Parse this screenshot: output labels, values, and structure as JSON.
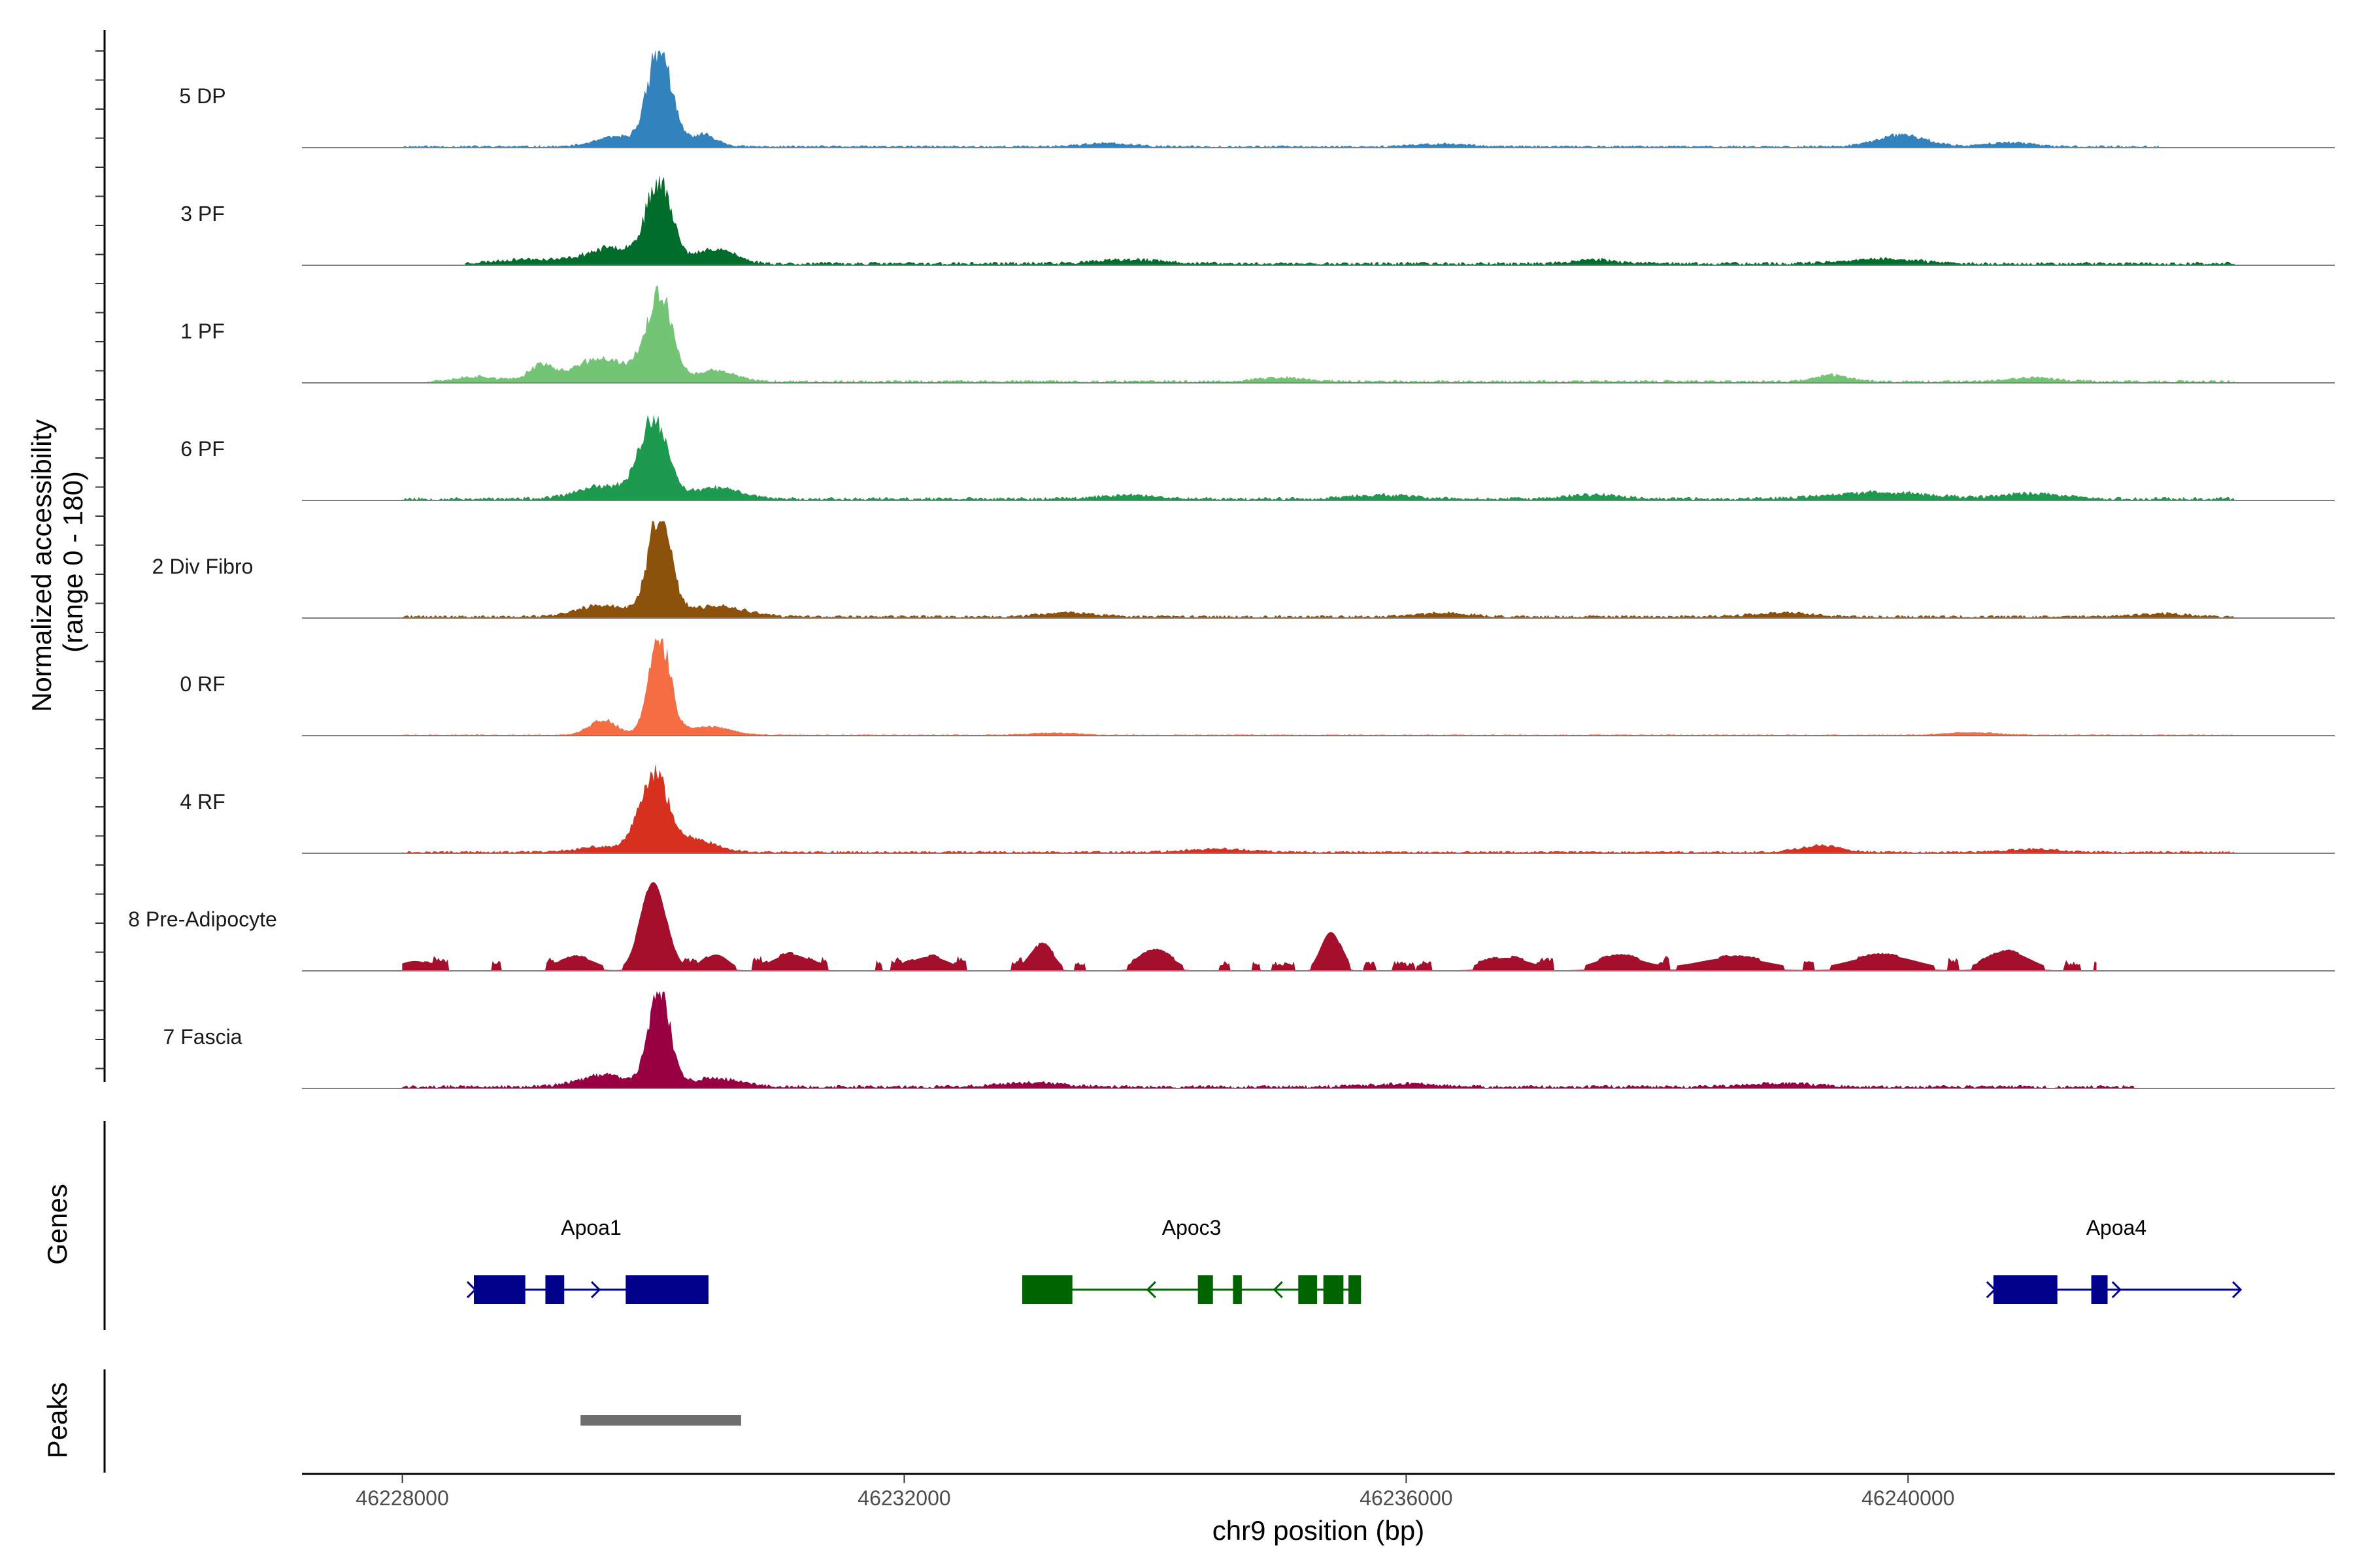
{
  "chart_data": {
    "type": "area",
    "y_axis_title_lines": [
      "Normalized accessibility",
      "(range 0 - 180)"
    ],
    "x_axis_title": "chr9 position (bp)",
    "xlim": [
      46227200,
      46243400
    ],
    "ylim": [
      0,
      180
    ],
    "x_ticks": [
      46228000,
      46232000,
      46236000,
      46240000
    ],
    "x_tick_labels": [
      "46228000",
      "46232000",
      "46236000",
      "46240000"
    ],
    "tracks": [
      {
        "name": "5 DP",
        "color": "#3182bd",
        "signal_start": 46228000,
        "signal_end": 46242000,
        "peaks": [
          [
            46230050,
            180,
            95
          ],
          [
            46229700,
            18,
            160
          ],
          [
            46230400,
            22,
            110
          ],
          [
            46239950,
            22,
            190
          ],
          [
            46240800,
            8,
            170
          ],
          [
            46233600,
            6,
            200
          ],
          [
            46236300,
            5,
            220
          ]
        ],
        "noise": 4,
        "seed": 11
      },
      {
        "name": "3 PF",
        "color": "#006d2c",
        "signal_start": 46228500,
        "signal_end": 46242600,
        "peaks": [
          [
            46230050,
            145,
            100
          ],
          [
            46229700,
            30,
            220
          ],
          [
            46230500,
            28,
            150
          ],
          [
            46229000,
            8,
            250
          ],
          [
            46237500,
            8,
            160
          ],
          [
            46239800,
            9,
            260
          ],
          [
            46233800,
            7,
            260
          ]
        ],
        "noise": 6,
        "seed": 23
      },
      {
        "name": "1 PF",
        "color": "#74c476",
        "signal_start": 46228200,
        "signal_end": 46242600,
        "peaks": [
          [
            46230050,
            155,
            100
          ],
          [
            46229600,
            42,
            240
          ],
          [
            46229100,
            28,
            90
          ],
          [
            46230500,
            20,
            150
          ],
          [
            46228600,
            9,
            180
          ],
          [
            46239400,
            12,
            140
          ],
          [
            46235000,
            7,
            200
          ],
          [
            46241000,
            7,
            200
          ]
        ],
        "noise": 5,
        "seed": 37
      },
      {
        "name": "6 PF",
        "color": "#1d9a4e",
        "signal_start": 46228000,
        "signal_end": 46242600,
        "peaks": [
          [
            46230000,
            145,
            110
          ],
          [
            46229600,
            24,
            200
          ],
          [
            46230500,
            20,
            200
          ],
          [
            46233800,
            7,
            240
          ],
          [
            46235800,
            7,
            240
          ],
          [
            46237500,
            8,
            200
          ],
          [
            46239800,
            12,
            400
          ],
          [
            46241000,
            10,
            240
          ]
        ],
        "noise": 6,
        "seed": 53
      },
      {
        "name": "2 Div Fibro",
        "color": "#8c510a",
        "signal_start": 46228000,
        "signal_end": 46242600,
        "peaks": [
          [
            46230050,
            190,
            90
          ],
          [
            46229600,
            22,
            200
          ],
          [
            46230500,
            20,
            220
          ],
          [
            46233300,
            8,
            200
          ],
          [
            46236300,
            7,
            220
          ],
          [
            46239000,
            7,
            240
          ],
          [
            46242000,
            6,
            200
          ]
        ],
        "noise": 5,
        "seed": 71
      },
      {
        "name": "0 RF",
        "color": "#f46d43",
        "signal_start": 46228000,
        "signal_end": 46242600,
        "peaks": [
          [
            46230050,
            180,
            85
          ],
          [
            46229600,
            28,
            110
          ],
          [
            46230450,
            16,
            170
          ],
          [
            46233200,
            4,
            200
          ],
          [
            46240500,
            5,
            200
          ]
        ],
        "noise": 2,
        "seed": 89
      },
      {
        "name": "4 RF",
        "color": "#d7301f",
        "signal_start": 46228000,
        "signal_end": 46242600,
        "peaks": [
          [
            46230000,
            140,
            110
          ],
          [
            46230300,
            24,
            180
          ],
          [
            46229600,
            10,
            200
          ],
          [
            46239300,
            12,
            170
          ],
          [
            46234500,
            6,
            250
          ],
          [
            46241000,
            6,
            200
          ]
        ],
        "noise": 4,
        "seed": 97
      },
      {
        "name": "8 Pre-Adipocyte",
        "color": "#a50f2b",
        "signal_start": 46228000,
        "signal_end": 46241500,
        "peaks": [
          [
            46230000,
            165,
            100
          ],
          [
            46235400,
            72,
            80
          ],
          [
            46234000,
            36,
            140
          ],
          [
            46233100,
            48,
            90
          ],
          [
            46231100,
            30,
            160
          ],
          [
            46229400,
            24,
            150
          ],
          [
            46228100,
            18,
            130
          ],
          [
            46232200,
            26,
            160
          ],
          [
            46236800,
            24,
            200
          ],
          [
            46237700,
            26,
            200
          ],
          [
            46238600,
            24,
            300
          ],
          [
            46239800,
            28,
            280
          ],
          [
            46240800,
            34,
            180
          ],
          [
            46230500,
            30,
            100
          ]
        ],
        "noise": 18,
        "seed": 113,
        "gapped": true
      },
      {
        "name": "7 Fascia",
        "color": "#980043",
        "signal_start": 46228000,
        "signal_end": 46241800,
        "peaks": [
          [
            46230050,
            175,
            85
          ],
          [
            46229600,
            22,
            200
          ],
          [
            46230500,
            16,
            200
          ],
          [
            46233000,
            8,
            260
          ],
          [
            46236000,
            6,
            260
          ],
          [
            46239000,
            7,
            260
          ]
        ],
        "noise": 6,
        "seed": 131
      }
    ],
    "genes_title": "Genes",
    "genes": [
      {
        "name": "Apoa1",
        "color": "#00008b",
        "start": 46228570,
        "end": 46230440,
        "strand": "+",
        "exons": [
          [
            46228570,
            46228980
          ],
          [
            46229140,
            46229290
          ],
          [
            46229780,
            46230440
          ]
        ],
        "arrows": [
          46228570,
          46229560
        ]
      },
      {
        "name": "Apoc3",
        "color": "#006400",
        "start": 46232940,
        "end": 46235640,
        "strand": "-",
        "exons": [
          [
            46232940,
            46233340
          ],
          [
            46234340,
            46234460
          ],
          [
            46234620,
            46234690
          ],
          [
            46235140,
            46235290
          ],
          [
            46235340,
            46235500
          ],
          [
            46235540,
            46235640
          ]
        ],
        "arrows": [
          46233950,
          46234960
        ]
      },
      {
        "name": "Apoa4",
        "color": "#00008b",
        "start": 46240680,
        "end": 46242640,
        "strand": "+",
        "exons": [
          [
            46240680,
            46241190
          ],
          [
            46241460,
            46241590
          ]
        ],
        "arrows": [
          46240680,
          46241680,
          46242640
        ]
      }
    ],
    "peaks_title": "Peaks",
    "peak_regions": [
      [
        46229420,
        46230700
      ]
    ]
  }
}
